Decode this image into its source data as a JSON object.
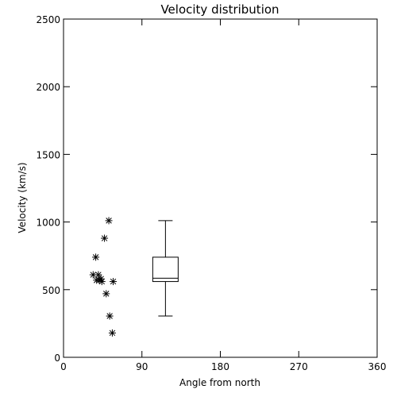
{
  "chart_data": {
    "type": "scatter",
    "title": "Velocity distribution",
    "xlabel": "Angle from north",
    "ylabel": "Velocity (km/s)",
    "xlim": [
      0,
      360
    ],
    "ylim": [
      0,
      2500
    ],
    "x_ticks": [
      0,
      90,
      180,
      270,
      360
    ],
    "y_ticks": [
      0,
      500,
      1000,
      1500,
      2000,
      2500
    ],
    "grid": false,
    "marker": "asterisk",
    "points": [
      {
        "x": 52,
        "y": 1010
      },
      {
        "x": 47,
        "y": 880
      },
      {
        "x": 37,
        "y": 740
      },
      {
        "x": 34,
        "y": 610
      },
      {
        "x": 38,
        "y": 570
      },
      {
        "x": 40,
        "y": 610
      },
      {
        "x": 41,
        "y": 570
      },
      {
        "x": 43,
        "y": 580
      },
      {
        "x": 44,
        "y": 560
      },
      {
        "x": 57,
        "y": 560
      },
      {
        "x": 49,
        "y": 470
      },
      {
        "x": 53,
        "y": 305
      },
      {
        "x": 56,
        "y": 180
      }
    ],
    "boxplot": {
      "x": 117,
      "min": 305,
      "q1": 560,
      "median": 585,
      "q3": 740,
      "max": 1010
    }
  }
}
